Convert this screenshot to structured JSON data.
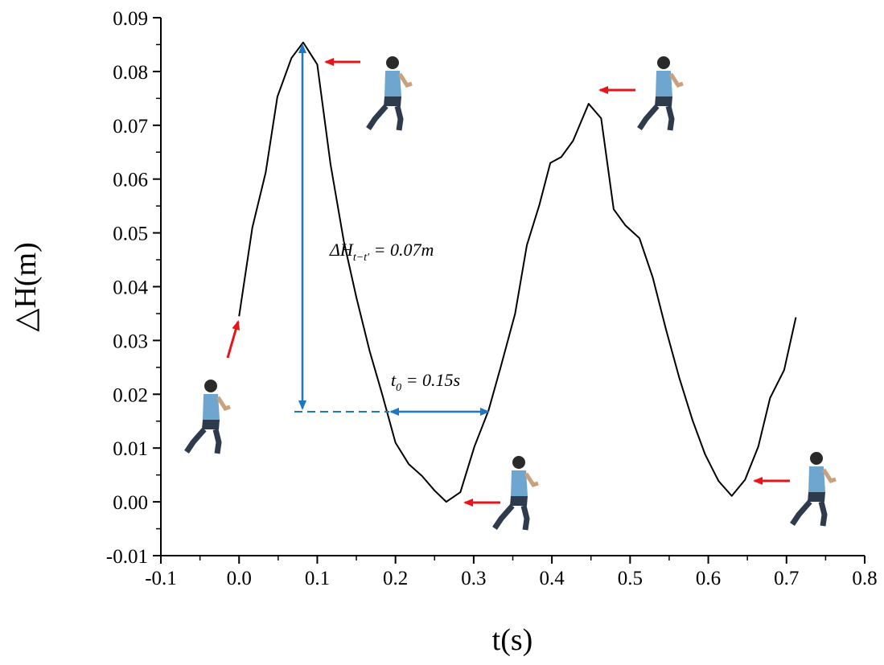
{
  "chart_data": {
    "type": "line",
    "x_label": "t(s)",
    "y_label": "△H(m)",
    "xlim": [
      -0.1,
      0.8
    ],
    "xticks": [
      -0.1,
      {
        "value": 0,
        "label": "0.0"
      },
      0.1,
      0.2,
      0.3,
      0.4,
      0.5,
      0.6,
      0.7,
      0.8
    ],
    "ylim": [
      -0.01,
      0.09
    ],
    "yticks": [
      -0.01,
      {
        "value": 0,
        "label": "0.00"
      },
      0.01,
      0.02,
      0.03,
      0.04,
      0.05,
      0.06,
      0.07,
      0.08,
      0.09
    ],
    "grid": false,
    "series": [
      {
        "color": "#000000",
        "x": [
          0,
          0.017,
          0.034,
          0.049,
          0.067,
          0.082,
          0.1,
          0.117,
          0.134,
          0.15,
          0.167,
          0.183,
          0.2,
          0.217,
          0.234,
          0.25,
          0.265,
          0.283,
          0.301,
          0.319,
          0.335,
          0.353,
          0.368,
          0.384,
          0.398,
          0.412,
          0.427,
          0.447,
          0.463,
          0.479,
          0.494,
          0.512,
          0.529,
          0.546,
          0.563,
          0.58,
          0.596,
          0.613,
          0.63,
          0.647,
          0.664,
          0.679,
          0.697,
          0.712
        ],
        "values": [
          0.0345,
          0.051,
          0.0612,
          0.0753,
          0.0825,
          0.0854,
          0.0813,
          0.0627,
          0.0484,
          0.038,
          0.028,
          0.02,
          0.011,
          0.007,
          0.0048,
          0.0021,
          0.0,
          0.0018,
          0.0103,
          0.017,
          0.0253,
          0.035,
          0.0477,
          0.0552,
          0.063,
          0.0641,
          0.0671,
          0.074,
          0.0713,
          0.0544,
          0.0514,
          0.049,
          0.0417,
          0.032,
          0.023,
          0.0151,
          0.0088,
          0.0039,
          0.0011,
          0.0041,
          0.0103,
          0.0193,
          0.0245,
          0.0343
        ]
      }
    ],
    "annotations": [
      {
        "main": "ΔH",
        "sub": "t−t′",
        "rest": " = 0.07m"
      },
      {
        "main": "t",
        "sub": "0",
        "rest": " = 0.15s"
      }
    ]
  }
}
